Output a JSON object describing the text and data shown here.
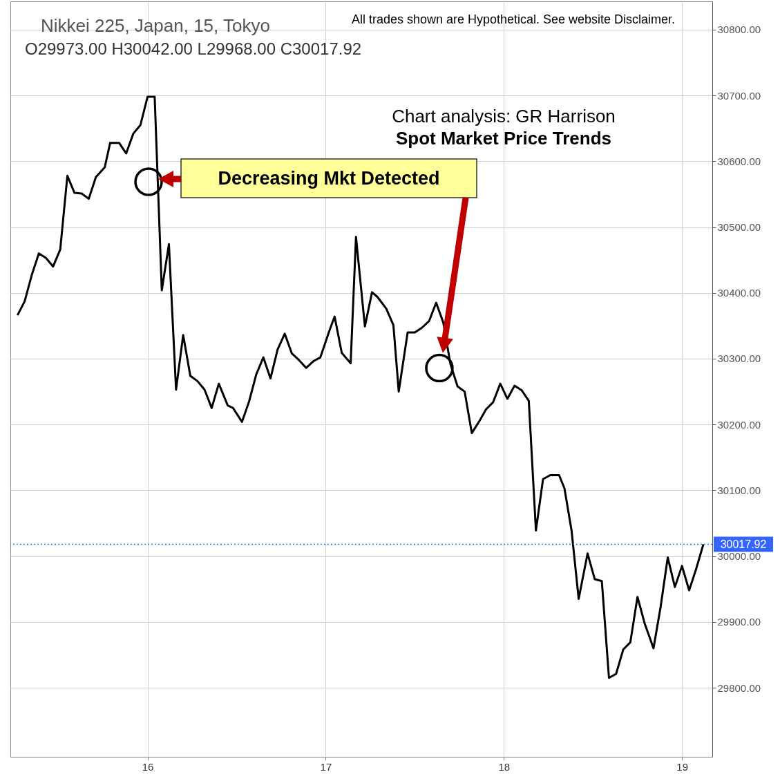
{
  "chart_data": {
    "type": "line",
    "title": "Nikkei 225, Japan, 15, Tokyo",
    "subtitle": "O29973.00 H30042.00 L29968.00 C30017.92",
    "annotations": [
      "All trades shown are Hypothetical. See website Disclaimer.",
      "Chart analysis: GR Harrison",
      "Spot Market Price Trends",
      "Decreasing Mkt Detected"
    ],
    "x": [
      15.27,
      15.31,
      15.35,
      15.39,
      15.43,
      15.47,
      15.51,
      15.55,
      15.59,
      15.63,
      15.67,
      15.71,
      15.76,
      15.79,
      15.84,
      15.88,
      15.92,
      15.96,
      16.0,
      16.04,
      16.08,
      16.12,
      16.16,
      16.2,
      16.24,
      16.28,
      16.32,
      16.36,
      16.4,
      16.45,
      16.48,
      16.53,
      16.57,
      16.61,
      16.65,
      16.69,
      16.73,
      16.77,
      16.81,
      16.85,
      16.89,
      16.93,
      16.97,
      17.02,
      17.05,
      17.09,
      17.14,
      17.17,
      17.22,
      17.26,
      17.29,
      17.34,
      17.38,
      17.41,
      17.46,
      17.5,
      17.54,
      17.58,
      17.62,
      17.66,
      17.7,
      17.74,
      17.78,
      17.82,
      17.86,
      17.9,
      17.94,
      17.98,
      18.02,
      18.06,
      18.1,
      18.14,
      18.18,
      18.22,
      18.26,
      18.31,
      18.34,
      18.38,
      18.42,
      18.47,
      18.51,
      18.55,
      18.59,
      18.63,
      18.67,
      18.71,
      18.75,
      18.79,
      18.84,
      18.88,
      18.92,
      18.96,
      19.0,
      19.04,
      19.08,
      19.12
    ],
    "series": [
      {
        "color": "#000000",
        "values": [
          30366,
          30387,
          30427,
          30460,
          30453,
          30440,
          30466,
          30578,
          30552,
          30551,
          30543,
          30576,
          30591,
          30628,
          30628,
          30612,
          30642,
          30655,
          30698,
          30698,
          30404,
          30474,
          30253,
          30336,
          30274,
          30266,
          30253,
          30225,
          30262,
          30229,
          30225,
          30204,
          30235,
          30276,
          30302,
          30270,
          30314,
          30338,
          30308,
          30298,
          30286,
          30296,
          30302,
          30342,
          30364,
          30309,
          30293,
          30485,
          30349,
          30401,
          30394,
          30376,
          30351,
          30250,
          30340,
          30340,
          30347,
          30357,
          30385,
          30355,
          30292,
          30258,
          30250,
          30187,
          30204,
          30223,
          30234,
          30262,
          30239,
          30259,
          30252,
          30236,
          30039,
          30117,
          30123,
          30123,
          30103,
          30039,
          29935,
          30004,
          29965,
          29962,
          29815,
          29821,
          29858,
          29869,
          29938,
          29898,
          29860,
          29923,
          29998,
          29953,
          29985,
          29948,
          29981,
          30018
        ]
      }
    ],
    "xlim": [
      15.23,
      19.17
    ],
    "xticks": [
      16,
      17,
      18,
      19
    ],
    "ylim": [
      29695,
      30843
    ],
    "yticks": [
      {
        "value": 29800,
        "label": "29800.00"
      },
      {
        "value": 29900,
        "label": "29900.00"
      },
      {
        "value": 30000,
        "label": "30000.00"
      },
      {
        "value": 30100,
        "label": "30100.00"
      },
      {
        "value": 30200,
        "label": "30200.00"
      },
      {
        "value": 30300,
        "label": "30300.00"
      },
      {
        "value": 30400,
        "label": "30400.00"
      },
      {
        "value": 30500,
        "label": "30500.00"
      },
      {
        "value": 30600,
        "label": "30600.00"
      },
      {
        "value": 30700,
        "label": "30700.00"
      },
      {
        "value": 30800,
        "label": "30800.00"
      }
    ],
    "grid": true,
    "ref_lines": [
      {
        "axis": "y",
        "value": 30017.92,
        "label": "30017.92",
        "color": "#3366ff",
        "line_style": "dotted"
      }
    ]
  }
}
